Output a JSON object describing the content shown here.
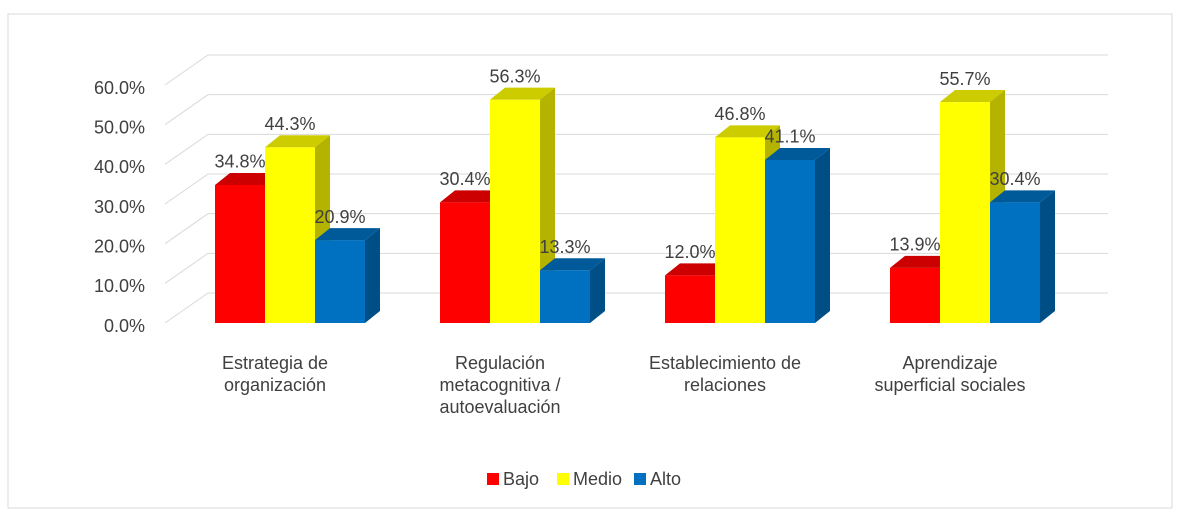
{
  "chart_data": {
    "type": "bar3d",
    "categories": [
      "Estrategia de organización",
      "Regulación metacognitiva / autoevaluación",
      "Establecimiento de relaciones",
      "Aprendizaje superficial sociales"
    ],
    "series": [
      {
        "name": "Bajo",
        "color": "#ff0000",
        "values": [
          34.8,
          30.4,
          12.0,
          13.9
        ],
        "value_labels": [
          "34.8%",
          "30.4%",
          "12.0%",
          "13.9%"
        ]
      },
      {
        "name": "Medio",
        "color": "#ffff00",
        "values": [
          44.3,
          56.3,
          46.8,
          55.7
        ],
        "value_labels": [
          "44.3%",
          "56.3%",
          "46.8%",
          "55.7%"
        ]
      },
      {
        "name": "Alto",
        "color": "#0070c0",
        "values": [
          20.9,
          13.3,
          41.1,
          30.4
        ],
        "value_labels": [
          "20.9%",
          "13.3%",
          "41.1%",
          "30.4%"
        ]
      }
    ],
    "ylim": [
      0,
      60
    ],
    "yticks": [
      {
        "value": 0,
        "label": "0.0%"
      },
      {
        "value": 10,
        "label": "10.0%"
      },
      {
        "value": 20,
        "label": "20.0%"
      },
      {
        "value": 30,
        "label": "30.0%"
      },
      {
        "value": 40,
        "label": "40.0%"
      },
      {
        "value": 50,
        "label": "50.0%"
      },
      {
        "value": 60,
        "label": "60.0%"
      }
    ],
    "grid": true,
    "legend": "bottom"
  }
}
